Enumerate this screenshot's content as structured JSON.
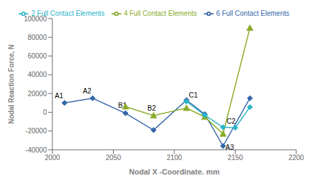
{
  "chart_data": {
    "type": "line",
    "title": "",
    "xlabel": "Nodal X -Coordinate, mm",
    "ylabel": "Nodal Reaction Force, N",
    "xlim": [
      2000,
      2200
    ],
    "ylim": [
      -40000,
      100000
    ],
    "xticks": [
      2000,
      2050,
      2100,
      2150,
      2200
    ],
    "yticks": [
      -40000,
      -20000,
      0,
      20000,
      40000,
      60000,
      80000,
      100000
    ],
    "grid": false,
    "legend": "upper right",
    "series": [
      {
        "name": "6 Full Contact Elements",
        "color": "#3466a8",
        "marker": "diamond",
        "x": [
          2010,
          2033,
          2060,
          2083,
          2110,
          2125,
          2140,
          2162
        ],
        "values": [
          10000,
          15000,
          -1000,
          -19000,
          13000,
          -2000,
          -36000,
          15000
        ]
      },
      {
        "name": "4 Full Contact Elements",
        "color": "#8aab2a",
        "marker": "triangle",
        "x": [
          2060,
          2083,
          2110,
          2125,
          2140,
          2162
        ],
        "values": [
          6000,
          -3500,
          4500,
          -5000,
          -23000,
          90000
        ]
      },
      {
        "name": "2 Full Contact Elements",
        "color": "#2ab5c8",
        "marker": "diamond",
        "x": [
          2110,
          2125,
          2140,
          2150,
          2162
        ],
        "values": [
          11500,
          -3000,
          -16000,
          -16500,
          5500
        ]
      }
    ],
    "annotations": [
      {
        "text": "A1",
        "x": 2002,
        "y": 15000
      },
      {
        "text": "A2",
        "x": 2025,
        "y": 20000
      },
      {
        "text": "B1",
        "x": 2054,
        "y": 5000
      },
      {
        "text": "B2",
        "x": 2078,
        "y": 2000
      },
      {
        "text": "C1",
        "x": 2112,
        "y": 16000
      },
      {
        "text": "A3",
        "x": 2142,
        "y": -40000
      },
      {
        "text": "C2",
        "x": 2143,
        "y": -12000
      }
    ]
  }
}
